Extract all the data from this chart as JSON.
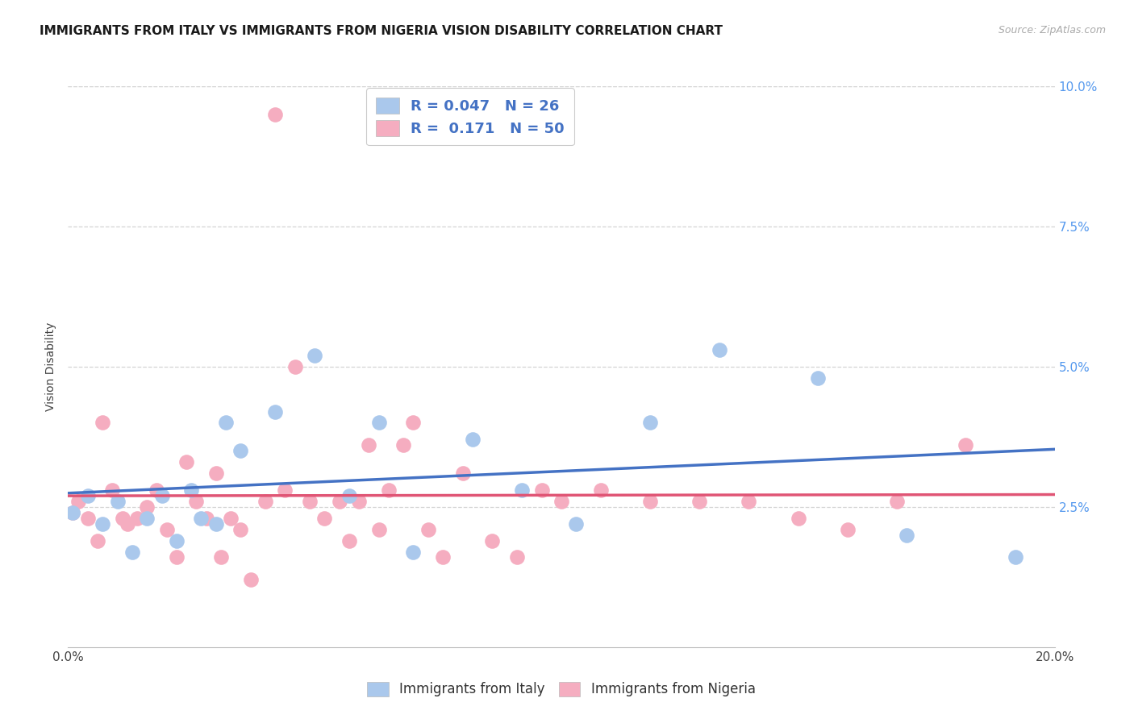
{
  "title": "IMMIGRANTS FROM ITALY VS IMMIGRANTS FROM NIGERIA VISION DISABILITY CORRELATION CHART",
  "source": "Source: ZipAtlas.com",
  "ylabel": "Vision Disability",
  "xlim": [
    0.0,
    0.2
  ],
  "ylim": [
    0.0,
    0.1
  ],
  "xtick_positions": [
    0.0,
    0.05,
    0.1,
    0.15,
    0.2
  ],
  "xtick_labels": [
    "0.0%",
    "",
    "",
    "",
    "20.0%"
  ],
  "ytick_positions": [
    0.0,
    0.025,
    0.05,
    0.075,
    0.1
  ],
  "ytick_labels": [
    "",
    "2.5%",
    "5.0%",
    "7.5%",
    "10.0%"
  ],
  "italy_color": "#aac8ec",
  "nigeria_color": "#f5adc0",
  "italy_line_color": "#4472c4",
  "nigeria_line_color": "#e05575",
  "italy_R": 0.047,
  "italy_N": 26,
  "nigeria_R": 0.171,
  "nigeria_N": 50,
  "italy_x": [
    0.001,
    0.004,
    0.007,
    0.01,
    0.013,
    0.016,
    0.019,
    0.022,
    0.025,
    0.027,
    0.03,
    0.032,
    0.035,
    0.042,
    0.05,
    0.057,
    0.063,
    0.07,
    0.082,
    0.092,
    0.103,
    0.118,
    0.132,
    0.152,
    0.17,
    0.192
  ],
  "italy_y": [
    0.024,
    0.027,
    0.022,
    0.026,
    0.017,
    0.023,
    0.027,
    0.019,
    0.028,
    0.023,
    0.022,
    0.04,
    0.035,
    0.042,
    0.052,
    0.027,
    0.04,
    0.017,
    0.037,
    0.028,
    0.022,
    0.04,
    0.053,
    0.048,
    0.02,
    0.016
  ],
  "nigeria_x": [
    0.001,
    0.002,
    0.004,
    0.006,
    0.007,
    0.009,
    0.011,
    0.012,
    0.014,
    0.016,
    0.018,
    0.02,
    0.022,
    0.024,
    0.026,
    0.028,
    0.03,
    0.031,
    0.033,
    0.035,
    0.037,
    0.04,
    0.042,
    0.044,
    0.046,
    0.049,
    0.052,
    0.055,
    0.057,
    0.059,
    0.061,
    0.063,
    0.065,
    0.068,
    0.07,
    0.073,
    0.076,
    0.08,
    0.086,
    0.091,
    0.096,
    0.1,
    0.108,
    0.118,
    0.128,
    0.138,
    0.148,
    0.158,
    0.168,
    0.182
  ],
  "nigeria_y": [
    0.024,
    0.026,
    0.023,
    0.019,
    0.04,
    0.028,
    0.023,
    0.022,
    0.023,
    0.025,
    0.028,
    0.021,
    0.016,
    0.033,
    0.026,
    0.023,
    0.031,
    0.016,
    0.023,
    0.021,
    0.012,
    0.026,
    0.095,
    0.028,
    0.05,
    0.026,
    0.023,
    0.026,
    0.019,
    0.026,
    0.036,
    0.021,
    0.028,
    0.036,
    0.04,
    0.021,
    0.016,
    0.031,
    0.019,
    0.016,
    0.028,
    0.026,
    0.028,
    0.026,
    0.026,
    0.026,
    0.023,
    0.021,
    0.026,
    0.036
  ],
  "background_color": "#ffffff",
  "grid_color": "#d4d4d4",
  "title_fontsize": 11,
  "axis_label_fontsize": 10,
  "tick_fontsize": 11,
  "legend_italy": "Immigrants from Italy",
  "legend_nigeria": "Immigrants from Nigeria",
  "legend_text_color": "#4472c4"
}
